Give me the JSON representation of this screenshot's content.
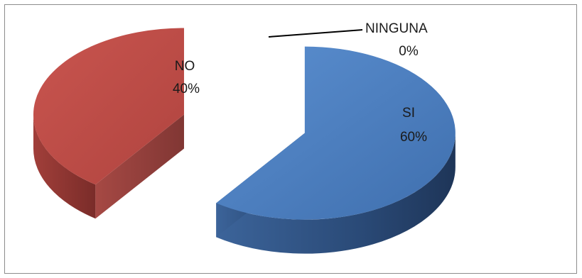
{
  "chart_data": {
    "type": "pie",
    "style": "3d-exploded",
    "categories": [
      "SI",
      "NO",
      "NINGUNA"
    ],
    "values": [
      60,
      40,
      0
    ],
    "percent_labels": [
      "60%",
      "40%",
      "0%"
    ],
    "colors": [
      "#4f81bd",
      "#c0504d",
      "#9bbb59"
    ],
    "title": "",
    "legend": "none",
    "grid": false
  }
}
